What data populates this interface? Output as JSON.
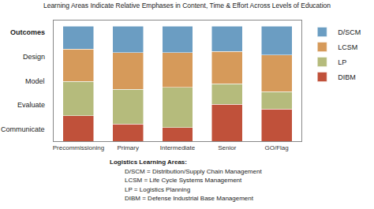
{
  "chart_data": {
    "type": "bar",
    "title": "Learning Areas Indicate Relative Emphases in Content, Time & Effort Across Levels of Education",
    "categories": [
      "Precommissioning",
      "Primary",
      "Intermediate",
      "Senior",
      "GO/Flag"
    ],
    "series": [
      {
        "name": "DIBM",
        "color": "#c0513a",
        "values": [
          22,
          15,
          12,
          32,
          28
        ]
      },
      {
        "name": "LP",
        "color": "#b5bb7c",
        "values": [
          30,
          30,
          35,
          18,
          15
        ]
      },
      {
        "name": "LCSM",
        "color": "#d69a5a",
        "values": [
          28,
          32,
          30,
          28,
          32
        ]
      },
      {
        "name": "D/SCM",
        "color": "#6b9dc2",
        "values": [
          20,
          23,
          23,
          22,
          25
        ]
      }
    ],
    "stacked": true,
    "ylim": [
      0,
      105
    ],
    "yticks": [],
    "tick_labels": "x",
    "grid": false,
    "legend": "right",
    "annotations": [
      "Outcomes",
      "Design",
      "Model",
      "Evaluate",
      "Communicate"
    ],
    "footnote": [
      "Logistics Learning Areas:",
      "D/SCM = Distribution/Supply Chain Management",
      "LCSM = Life Cycle Systems Management",
      "LP = Logistics Planning",
      "DIBM = Defense Industrial Base Management"
    ]
  }
}
